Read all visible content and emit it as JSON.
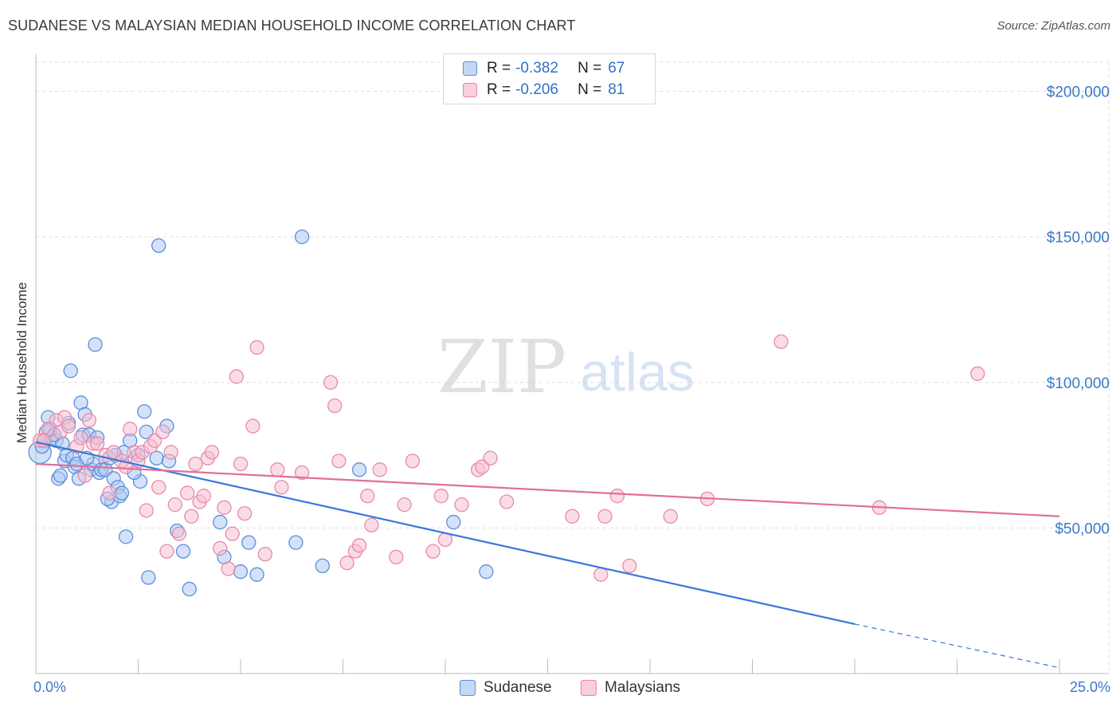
{
  "title": "SUDANESE VS MALAYSIAN MEDIAN HOUSEHOLD INCOME CORRELATION CHART",
  "source": "Source: ZipAtlas.com",
  "watermark": {
    "zip": "ZIP",
    "atlas": "atlas"
  },
  "colors": {
    "blue": "#3a78d8",
    "blue_fill": "#aecbf3",
    "pink": "#e07098",
    "pink_fill": "#f6bfd1",
    "tick_text": "#3a78c8",
    "grid": "#dddddd"
  },
  "legend": {
    "row1": {
      "r_label": "R =",
      "r_value": "-0.382",
      "n_label": "N =",
      "n_value": "67"
    },
    "row2": {
      "r_label": "R =",
      "r_value": "-0.206",
      "n_label": "N =",
      "n_value": "81"
    }
  },
  "chart_data": {
    "type": "scatter",
    "title": "SUDANESE VS MALAYSIAN MEDIAN HOUSEHOLD INCOME CORRELATION CHART",
    "xlabel": "",
    "ylabel": "Median Household Income",
    "xlim": [
      0,
      25
    ],
    "ylim": [
      0,
      210000
    ],
    "x_tick_labels": {
      "left": "0.0%",
      "right": "25.0%"
    },
    "y_ticks": [
      {
        "value": 50000,
        "label": "$50,000"
      },
      {
        "value": 100000,
        "label": "$100,000"
      },
      {
        "value": 150000,
        "label": "$150,000"
      },
      {
        "value": 200000,
        "label": "$200,000"
      }
    ],
    "grid": true,
    "legend_position": "bottom-center",
    "series": [
      {
        "name": "Sudanese",
        "color": "#3a78d8",
        "trend": {
          "x0": 0,
          "y0": 79500,
          "x1": 20,
          "y1": 17000,
          "dash_to_x": 25,
          "dash_to_y": 2000
        },
        "points": [
          [
            0.1,
            76000
          ],
          [
            0.2,
            80000
          ],
          [
            0.25,
            83000
          ],
          [
            0.3,
            88000
          ],
          [
            0.35,
            84000
          ],
          [
            0.4,
            81000
          ],
          [
            0.5,
            80000
          ],
          [
            0.55,
            67000
          ],
          [
            0.6,
            68000
          ],
          [
            0.65,
            79000
          ],
          [
            0.7,
            73000
          ],
          [
            0.75,
            75000
          ],
          [
            0.8,
            86000
          ],
          [
            0.85,
            104000
          ],
          [
            0.9,
            74000
          ],
          [
            0.95,
            71000
          ],
          [
            1.0,
            72000
          ],
          [
            1.05,
            67000
          ],
          [
            1.1,
            93000
          ],
          [
            1.15,
            82000
          ],
          [
            1.2,
            89000
          ],
          [
            1.3,
            82000
          ],
          [
            1.35,
            70000
          ],
          [
            1.4,
            72000
          ],
          [
            1.45,
            113000
          ],
          [
            1.5,
            81000
          ],
          [
            1.55,
            69000
          ],
          [
            1.6,
            70000
          ],
          [
            1.7,
            70000
          ],
          [
            1.8,
            74000
          ],
          [
            1.85,
            59000
          ],
          [
            1.9,
            67000
          ],
          [
            1.95,
            75000
          ],
          [
            2.0,
            64000
          ],
          [
            2.05,
            61000
          ],
          [
            2.1,
            62000
          ],
          [
            2.15,
            76000
          ],
          [
            2.2,
            47000
          ],
          [
            2.3,
            80000
          ],
          [
            2.5,
            75000
          ],
          [
            2.55,
            66000
          ],
          [
            2.65,
            90000
          ],
          [
            2.7,
            83000
          ],
          [
            2.75,
            33000
          ],
          [
            2.95,
            74000
          ],
          [
            3.0,
            147000
          ],
          [
            3.2,
            85000
          ],
          [
            3.25,
            73000
          ],
          [
            3.45,
            49000
          ],
          [
            3.6,
            42000
          ],
          [
            3.75,
            29000
          ],
          [
            4.5,
            52000
          ],
          [
            4.6,
            40000
          ],
          [
            5.0,
            35000
          ],
          [
            5.2,
            45000
          ],
          [
            5.4,
            34000
          ],
          [
            6.35,
            45000
          ],
          [
            6.5,
            150000
          ],
          [
            7.0,
            37000
          ],
          [
            7.9,
            70000
          ],
          [
            10.2,
            52000
          ],
          [
            11.0,
            35000
          ],
          [
            0.15,
            78000
          ],
          [
            0.45,
            82000
          ],
          [
            1.25,
            74000
          ],
          [
            1.75,
            60000
          ],
          [
            2.4,
            69000
          ]
        ]
      },
      {
        "name": "Malaysians",
        "color": "#e07098",
        "trend": {
          "x0": 0,
          "y0": 72000,
          "x1": 25,
          "y1": 54000
        },
        "points": [
          [
            0.1,
            80000
          ],
          [
            0.3,
            84000
          ],
          [
            0.5,
            87000
          ],
          [
            0.6,
            83000
          ],
          [
            0.7,
            88000
          ],
          [
            0.8,
            85000
          ],
          [
            1.0,
            78000
          ],
          [
            1.1,
            81000
          ],
          [
            1.2,
            68000
          ],
          [
            1.3,
            87000
          ],
          [
            1.4,
            79000
          ],
          [
            1.5,
            79000
          ],
          [
            1.7,
            75000
          ],
          [
            1.8,
            62000
          ],
          [
            1.9,
            76000
          ],
          [
            2.1,
            73000
          ],
          [
            2.2,
            71000
          ],
          [
            2.3,
            84000
          ],
          [
            2.4,
            76000
          ],
          [
            2.5,
            73000
          ],
          [
            2.6,
            76000
          ],
          [
            2.7,
            56000
          ],
          [
            2.8,
            78000
          ],
          [
            2.9,
            80000
          ],
          [
            3.0,
            64000
          ],
          [
            3.1,
            83000
          ],
          [
            3.2,
            42000
          ],
          [
            3.3,
            76000
          ],
          [
            3.4,
            58000
          ],
          [
            3.5,
            48000
          ],
          [
            3.7,
            62000
          ],
          [
            3.8,
            54000
          ],
          [
            3.9,
            72000
          ],
          [
            4.0,
            59000
          ],
          [
            4.1,
            61000
          ],
          [
            4.2,
            74000
          ],
          [
            4.3,
            76000
          ],
          [
            4.5,
            43000
          ],
          [
            4.6,
            57000
          ],
          [
            4.7,
            36000
          ],
          [
            4.8,
            48000
          ],
          [
            4.9,
            102000
          ],
          [
            5.0,
            72000
          ],
          [
            5.1,
            55000
          ],
          [
            5.3,
            85000
          ],
          [
            5.4,
            112000
          ],
          [
            5.6,
            41000
          ],
          [
            5.9,
            70000
          ],
          [
            6.0,
            64000
          ],
          [
            6.5,
            69000
          ],
          [
            7.2,
            100000
          ],
          [
            7.3,
            92000
          ],
          [
            7.4,
            73000
          ],
          [
            7.6,
            38000
          ],
          [
            7.8,
            42000
          ],
          [
            7.9,
            44000
          ],
          [
            8.1,
            61000
          ],
          [
            8.2,
            51000
          ],
          [
            8.4,
            70000
          ],
          [
            8.8,
            40000
          ],
          [
            9.0,
            58000
          ],
          [
            9.2,
            73000
          ],
          [
            9.7,
            42000
          ],
          [
            9.9,
            61000
          ],
          [
            10.0,
            46000
          ],
          [
            10.4,
            58000
          ],
          [
            10.8,
            70000
          ],
          [
            10.9,
            71000
          ],
          [
            11.1,
            74000
          ],
          [
            11.5,
            59000
          ],
          [
            13.1,
            54000
          ],
          [
            13.8,
            34000
          ],
          [
            13.9,
            54000
          ],
          [
            14.2,
            61000
          ],
          [
            14.5,
            37000
          ],
          [
            15.5,
            54000
          ],
          [
            16.4,
            60000
          ],
          [
            18.2,
            114000
          ],
          [
            20.6,
            57000
          ],
          [
            23.0,
            103000
          ],
          [
            0.2,
            80000
          ]
        ]
      }
    ]
  }
}
